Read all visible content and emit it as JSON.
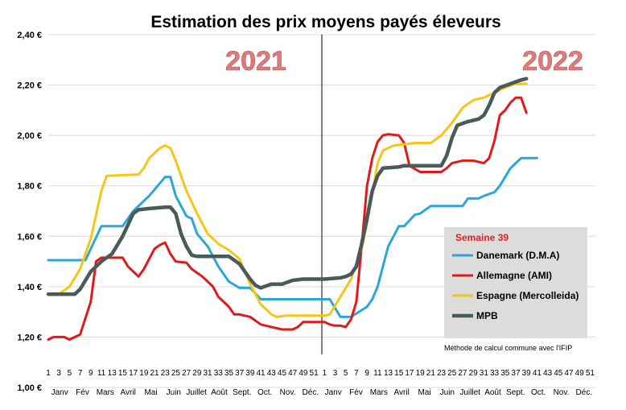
{
  "chart_data": {
    "type": "line",
    "title": "Estimation des prix moyens payés éleveurs",
    "year_labels": [
      "2021",
      "2022"
    ],
    "ylim": [
      1.0,
      2.4
    ],
    "y_ticks": [
      "1,00 €",
      "1,20 €",
      "1,40 €",
      "1,60 €",
      "1,80 €",
      "2,00 €",
      "2,20 €",
      "2,40 €"
    ],
    "grid": true,
    "week_ticks": [
      "1",
      "3",
      "5",
      "7",
      "9",
      "11",
      "13",
      "15",
      "17",
      "19",
      "21",
      "23",
      "25",
      "27",
      "29",
      "31",
      "33",
      "35",
      "37",
      "39",
      "41",
      "43",
      "45",
      "47",
      "49",
      "51",
      "1",
      "3",
      "5",
      "7",
      "9",
      "11",
      "13",
      "15",
      "17",
      "19",
      "21",
      "23",
      "25",
      "27",
      "29",
      "31",
      "33",
      "35",
      "37",
      "39",
      "41",
      "43",
      "45",
      "47",
      "49",
      "51"
    ],
    "months": [
      "Janv",
      "Fév",
      "Mars",
      "Avril",
      "Mai",
      "Juin",
      "Juillet",
      "Août",
      "Sept.",
      "Oct.",
      "Nov.",
      "Déc.",
      "Janv",
      "Fév",
      "Mars",
      "Avril",
      "Mai",
      "Juin",
      "Juillet",
      "Août",
      "Sept.",
      "Oct.",
      "Nov.",
      "Déc."
    ],
    "legend": {
      "title": "Semaine 39",
      "placement": "right"
    },
    "note": "Méthode de calcul commune avec l'IFIP",
    "series": [
      {
        "name": "Danemark (D.M.A)",
        "color": "#2aa7d8",
        "points": [
          [
            1,
            1.505
          ],
          [
            8,
            1.505
          ],
          [
            11,
            1.64
          ],
          [
            15,
            1.64
          ],
          [
            17,
            1.7
          ],
          [
            20,
            1.76
          ],
          [
            23,
            1.835
          ],
          [
            24,
            1.835
          ],
          [
            25,
            1.76
          ],
          [
            27,
            1.68
          ],
          [
            28,
            1.67
          ],
          [
            29,
            1.61
          ],
          [
            31,
            1.56
          ],
          [
            33,
            1.48
          ],
          [
            35,
            1.42
          ],
          [
            37,
            1.395
          ],
          [
            39,
            1.395
          ],
          [
            41,
            1.35
          ],
          [
            52,
            1.35
          ],
          [
            53,
            1.35
          ],
          [
            54,
            1.35
          ],
          [
            56,
            1.28
          ],
          [
            58,
            1.28
          ],
          [
            61,
            1.32
          ],
          [
            62,
            1.35
          ],
          [
            63,
            1.4
          ],
          [
            65,
            1.56
          ],
          [
            67,
            1.64
          ],
          [
            68,
            1.64
          ],
          [
            70,
            1.685
          ],
          [
            71,
            1.69
          ],
          [
            73,
            1.72
          ],
          [
            79,
            1.72
          ],
          [
            80,
            1.75
          ],
          [
            82,
            1.75
          ],
          [
            83,
            1.76
          ],
          [
            85,
            1.775
          ],
          [
            86,
            1.8
          ],
          [
            88,
            1.87
          ],
          [
            90,
            1.91
          ],
          [
            93,
            1.91
          ]
        ]
      },
      {
        "name": "Allemagne (AMI)",
        "color": "#e0191b",
        "points": [
          [
            1,
            1.19
          ],
          [
            2,
            1.2
          ],
          [
            4,
            1.2
          ],
          [
            5,
            1.19
          ],
          [
            6,
            1.2
          ],
          [
            7,
            1.21
          ],
          [
            9,
            1.34
          ],
          [
            10,
            1.5
          ],
          [
            11,
            1.515
          ],
          [
            15,
            1.515
          ],
          [
            16,
            1.48
          ],
          [
            18,
            1.44
          ],
          [
            19,
            1.47
          ],
          [
            21,
            1.55
          ],
          [
            22,
            1.565
          ],
          [
            23,
            1.575
          ],
          [
            24,
            1.53
          ],
          [
            25,
            1.5
          ],
          [
            27,
            1.495
          ],
          [
            28,
            1.47
          ],
          [
            30,
            1.44
          ],
          [
            31,
            1.42
          ],
          [
            32,
            1.4
          ],
          [
            33,
            1.36
          ],
          [
            35,
            1.32
          ],
          [
            36,
            1.29
          ],
          [
            37,
            1.29
          ],
          [
            39,
            1.28
          ],
          [
            41,
            1.25
          ],
          [
            43,
            1.24
          ],
          [
            45,
            1.23
          ],
          [
            47,
            1.23
          ],
          [
            48,
            1.24
          ],
          [
            49,
            1.26
          ],
          [
            51,
            1.26
          ],
          [
            53,
            1.26
          ],
          [
            54,
            1.25
          ],
          [
            55,
            1.245
          ],
          [
            56,
            1.245
          ],
          [
            57,
            1.24
          ],
          [
            58,
            1.27
          ],
          [
            59,
            1.34
          ],
          [
            60,
            1.56
          ],
          [
            61,
            1.8
          ],
          [
            62,
            1.91
          ],
          [
            63,
            1.975
          ],
          [
            64,
            2.0
          ],
          [
            65,
            2.005
          ],
          [
            67,
            2.0
          ],
          [
            68,
            1.97
          ],
          [
            69,
            1.88
          ],
          [
            71,
            1.855
          ],
          [
            75,
            1.855
          ],
          [
            76,
            1.87
          ],
          [
            77,
            1.89
          ],
          [
            79,
            1.9
          ],
          [
            81,
            1.9
          ],
          [
            83,
            1.89
          ],
          [
            84,
            1.91
          ],
          [
            85,
            1.98
          ],
          [
            86,
            2.08
          ],
          [
            87,
            2.1
          ],
          [
            88,
            2.13
          ],
          [
            89,
            2.15
          ],
          [
            90,
            2.15
          ],
          [
            91,
            2.09
          ]
        ]
      },
      {
        "name": "Espagne (Mercolleida)",
        "color": "#f5c518",
        "points": [
          [
            1,
            1.37
          ],
          [
            3,
            1.37
          ],
          [
            5,
            1.4
          ],
          [
            7,
            1.47
          ],
          [
            9,
            1.59
          ],
          [
            11,
            1.78
          ],
          [
            12,
            1.84
          ],
          [
            18,
            1.845
          ],
          [
            19,
            1.87
          ],
          [
            20,
            1.91
          ],
          [
            22,
            1.95
          ],
          [
            23,
            1.96
          ],
          [
            24,
            1.95
          ],
          [
            25,
            1.9
          ],
          [
            27,
            1.78
          ],
          [
            29,
            1.69
          ],
          [
            31,
            1.61
          ],
          [
            33,
            1.57
          ],
          [
            35,
            1.545
          ],
          [
            37,
            1.51
          ],
          [
            39,
            1.41
          ],
          [
            41,
            1.33
          ],
          [
            43,
            1.29
          ],
          [
            44,
            1.28
          ],
          [
            46,
            1.285
          ],
          [
            53,
            1.285
          ],
          [
            54,
            1.29
          ],
          [
            56,
            1.36
          ],
          [
            58,
            1.43
          ],
          [
            60,
            1.55
          ],
          [
            61,
            1.65
          ],
          [
            62,
            1.77
          ],
          [
            63,
            1.89
          ],
          [
            64,
            1.94
          ],
          [
            66,
            1.96
          ],
          [
            68,
            1.965
          ],
          [
            70,
            1.97
          ],
          [
            73,
            1.97
          ],
          [
            75,
            2.0
          ],
          [
            77,
            2.05
          ],
          [
            79,
            2.11
          ],
          [
            81,
            2.14
          ],
          [
            83,
            2.15
          ],
          [
            85,
            2.17
          ],
          [
            87,
            2.19
          ],
          [
            89,
            2.205
          ],
          [
            91,
            2.205
          ]
        ]
      },
      {
        "name": "MPB",
        "color": "#4a5a5a",
        "points": [
          [
            1,
            1.37
          ],
          [
            6,
            1.37
          ],
          [
            7,
            1.39
          ],
          [
            9,
            1.46
          ],
          [
            11,
            1.5
          ],
          [
            13,
            1.53
          ],
          [
            15,
            1.6
          ],
          [
            17,
            1.69
          ],
          [
            18,
            1.705
          ],
          [
            20,
            1.71
          ],
          [
            23,
            1.715
          ],
          [
            24,
            1.715
          ],
          [
            25,
            1.69
          ],
          [
            26,
            1.61
          ],
          [
            27,
            1.56
          ],
          [
            28,
            1.525
          ],
          [
            29,
            1.52
          ],
          [
            35,
            1.52
          ],
          [
            37,
            1.49
          ],
          [
            39,
            1.43
          ],
          [
            40,
            1.405
          ],
          [
            41,
            1.395
          ],
          [
            43,
            1.41
          ],
          [
            45,
            1.41
          ],
          [
            47,
            1.425
          ],
          [
            49,
            1.43
          ],
          [
            53,
            1.43
          ],
          [
            56,
            1.435
          ],
          [
            57,
            1.44
          ],
          [
            58,
            1.45
          ],
          [
            59,
            1.48
          ],
          [
            60,
            1.57
          ],
          [
            61,
            1.67
          ],
          [
            62,
            1.78
          ],
          [
            63,
            1.84
          ],
          [
            64,
            1.87
          ],
          [
            67,
            1.875
          ],
          [
            68,
            1.88
          ],
          [
            75,
            1.88
          ],
          [
            76,
            1.92
          ],
          [
            77,
            1.99
          ],
          [
            78,
            2.04
          ],
          [
            80,
            2.055
          ],
          [
            82,
            2.065
          ],
          [
            83,
            2.08
          ],
          [
            84,
            2.12
          ],
          [
            85,
            2.17
          ],
          [
            86,
            2.19
          ],
          [
            88,
            2.205
          ],
          [
            90,
            2.22
          ],
          [
            91,
            2.225
          ]
        ]
      }
    ]
  }
}
